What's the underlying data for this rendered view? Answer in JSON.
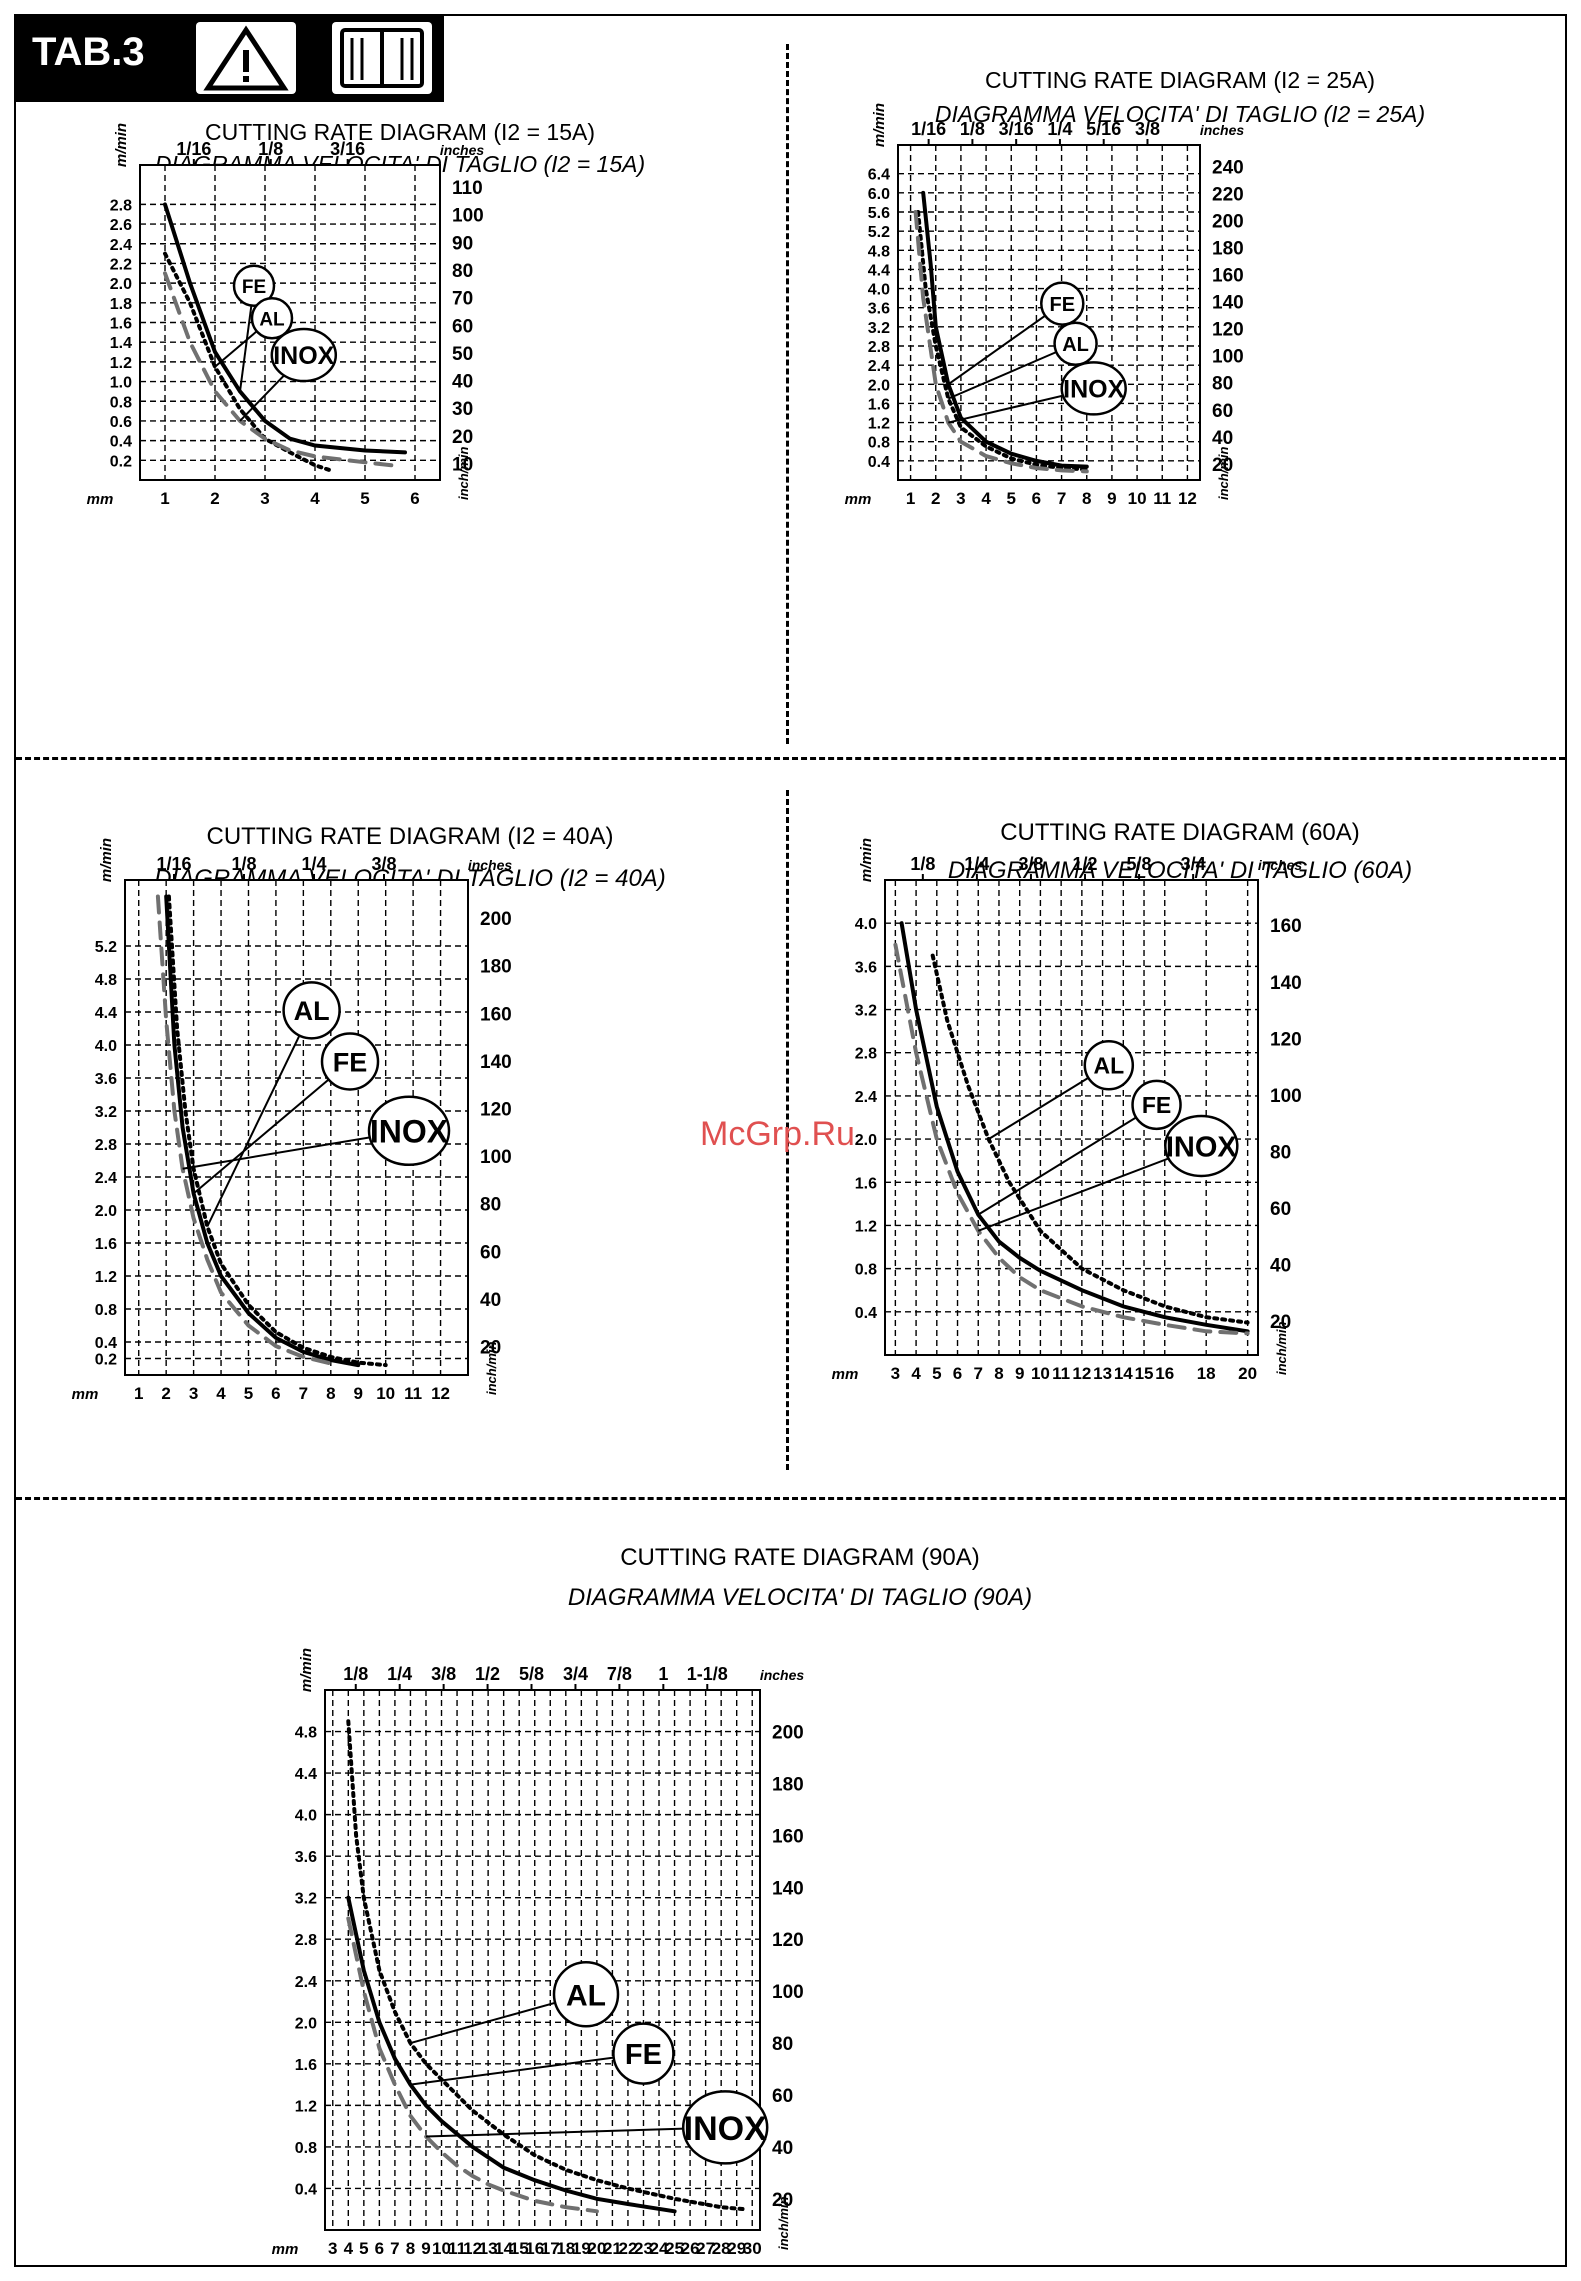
{
  "header": {
    "tab_label": "TAB.3",
    "icons": [
      "warning-triangle-icon",
      "manual-book-icon"
    ]
  },
  "watermark": "McGrp.Ru",
  "colors": {
    "fe": "#000000",
    "al": "#000000",
    "inox": "#707070"
  },
  "chart_data": [
    {
      "type": "line",
      "title": "CUTTING RATE DIAGRAM (I2 = 15A)",
      "subtitle": "DIAGRAMMA VELOCITA' DI TAGLIO (I2 = 15A)",
      "xlabel": "mm",
      "ylabel": "m/min",
      "y2label": "inch/min",
      "x2label": "inches",
      "xlim": [
        0.5,
        6.5
      ],
      "ylim": [
        0,
        3.2
      ],
      "x_ticks": [
        "1",
        "2",
        "3",
        "4",
        "5",
        "6"
      ],
      "y_ticks": [
        "0.2",
        "0.4",
        "0.6",
        "0.8",
        "1.0",
        "1.2",
        "1.4",
        "1.6",
        "1.8",
        "2.0",
        "2.2",
        "2.4",
        "2.6",
        "2.8"
      ],
      "y2_ticks": [
        "10",
        "20",
        "30",
        "40",
        "50",
        "60",
        "70",
        "80",
        "90",
        "100",
        "110"
      ],
      "x2_ticks": [
        "1/16",
        "1/8",
        "3/16"
      ],
      "series": [
        {
          "name": "FE",
          "style": "solid",
          "x": [
            1,
            1.5,
            2,
            2.5,
            3,
            3.5,
            4,
            5,
            5.8
          ],
          "y": [
            2.8,
            2.0,
            1.3,
            0.9,
            0.6,
            0.42,
            0.35,
            0.3,
            0.28
          ]
        },
        {
          "name": "AL",
          "style": "dotted",
          "x": [
            1,
            1.5,
            2,
            2.5,
            3,
            3.5,
            4,
            4.3
          ],
          "y": [
            2.3,
            1.8,
            1.15,
            0.72,
            0.42,
            0.28,
            0.15,
            0.1
          ]
        },
        {
          "name": "INOX",
          "style": "dashed",
          "x": [
            1,
            1.5,
            2,
            2.5,
            3,
            3.5,
            4,
            5,
            5.7
          ],
          "y": [
            2.1,
            1.4,
            0.9,
            0.6,
            0.42,
            0.3,
            0.24,
            0.18,
            0.14
          ]
        }
      ]
    },
    {
      "type": "line",
      "title": "CUTTING RATE DIAGRAM (I2 = 25A)",
      "subtitle": "DIAGRAMMA VELOCITA' DI TAGLIO (I2 = 25A)",
      "xlabel": "mm",
      "ylabel": "m/min",
      "y2label": "inch/min",
      "x2label": "inches",
      "xlim": [
        0.5,
        12.5
      ],
      "ylim": [
        0,
        7
      ],
      "x_ticks": [
        "1",
        "2",
        "3",
        "4",
        "5",
        "6",
        "7",
        "8",
        "9",
        "10",
        "11",
        "12"
      ],
      "y_ticks": [
        "0.4",
        "0.8",
        "1.2",
        "1.6",
        "2.0",
        "2.4",
        "2.8",
        "3.2",
        "3.6",
        "4.0",
        "4.4",
        "4.8",
        "5.2",
        "5.6",
        "6.0",
        "6.4"
      ],
      "y2_ticks": [
        "20",
        "40",
        "60",
        "80",
        "100",
        "120",
        "140",
        "160",
        "180",
        "200",
        "220",
        "240"
      ],
      "x2_ticks": [
        "1/16",
        "1/8",
        "3/16",
        "1/4",
        "5/16",
        "3/8"
      ],
      "series": [
        {
          "name": "FE",
          "style": "solid",
          "x": [
            1.5,
            1.8,
            2,
            2.5,
            3,
            4,
            5,
            6,
            7,
            8
          ],
          "y": [
            6.0,
            4.5,
            3.2,
            2.0,
            1.3,
            0.8,
            0.55,
            0.4,
            0.3,
            0.28
          ]
        },
        {
          "name": "AL",
          "style": "dotted",
          "x": [
            1.3,
            1.6,
            2,
            2.5,
            3,
            4,
            5,
            6,
            7,
            8
          ],
          "y": [
            5.6,
            4.0,
            2.8,
            1.7,
            1.1,
            0.7,
            0.45,
            0.32,
            0.25,
            0.22
          ]
        },
        {
          "name": "INOX",
          "style": "dashed",
          "x": [
            1.2,
            1.5,
            2,
            2.5,
            3,
            4,
            5,
            6,
            7,
            8
          ],
          "y": [
            5.6,
            3.8,
            2.0,
            1.2,
            0.8,
            0.5,
            0.35,
            0.25,
            0.2,
            0.18
          ]
        }
      ]
    },
    {
      "type": "line",
      "title": "CUTTING RATE DIAGRAM (I2 = 40A)",
      "subtitle": "DIAGRAMMA VELOCITA' DI TAGLIO (I2 = 40A)",
      "xlabel": "mm",
      "ylabel": "m/min",
      "y2label": "inch/min",
      "x2label": "inches",
      "xlim": [
        0.5,
        13
      ],
      "ylim": [
        0,
        6
      ],
      "x_ticks": [
        "1",
        "2",
        "3",
        "4",
        "5",
        "6",
        "7",
        "8",
        "9",
        "10",
        "11",
        "12"
      ],
      "y_ticks": [
        "0.2",
        "0.4",
        "0.8",
        "1.2",
        "1.6",
        "2.0",
        "2.4",
        "2.8",
        "3.2",
        "3.6",
        "4.0",
        "4.4",
        "4.8",
        "5.2"
      ],
      "y2_ticks": [
        "20",
        "40",
        "60",
        "80",
        "100",
        "120",
        "140",
        "160",
        "180",
        "200"
      ],
      "x2_ticks": [
        "1/16",
        "1/8",
        "1/4",
        "3/8"
      ],
      "series": [
        {
          "name": "FE",
          "style": "solid",
          "x": [
            2,
            2.3,
            2.6,
            3,
            3.5,
            4,
            5,
            6,
            7,
            8,
            9
          ],
          "y": [
            5.8,
            4.0,
            3.0,
            2.2,
            1.6,
            1.2,
            0.75,
            0.45,
            0.28,
            0.18,
            0.12
          ]
        },
        {
          "name": "AL",
          "style": "dotted",
          "x": [
            2.1,
            2.4,
            2.7,
            3,
            3.5,
            4,
            5,
            6,
            7,
            8,
            9,
            10
          ],
          "y": [
            5.8,
            4.2,
            3.2,
            2.5,
            1.8,
            1.35,
            0.85,
            0.52,
            0.33,
            0.22,
            0.15,
            0.12
          ]
        },
        {
          "name": "INOX",
          "style": "dashed",
          "x": [
            1.7,
            2,
            2.3,
            2.6,
            3,
            3.5,
            4,
            5,
            6,
            7,
            8
          ],
          "y": [
            5.8,
            4.3,
            3.2,
            2.5,
            1.9,
            1.4,
            1.0,
            0.6,
            0.35,
            0.22,
            0.14
          ]
        }
      ]
    },
    {
      "type": "line",
      "title": "CUTTING RATE DIAGRAM (60A)",
      "subtitle": "DIAGRAMMA VELOCITA' DI TAGLIO (60A)",
      "xlabel": "mm",
      "ylabel": "m/min",
      "y2label": "inch/min",
      "x2label": "inches",
      "xlim": [
        2.5,
        20.5
      ],
      "ylim": [
        0,
        4.4
      ],
      "x_ticks": [
        "3",
        "4",
        "5",
        "6",
        "7",
        "8",
        "9",
        "10",
        "11",
        "12",
        "13",
        "14",
        "15",
        "16",
        "18",
        "20"
      ],
      "y_ticks": [
        "0.4",
        "0.8",
        "1.2",
        "1.6",
        "2.0",
        "2.4",
        "2.8",
        "3.2",
        "3.6",
        "4.0"
      ],
      "y2_ticks": [
        "20",
        "40",
        "60",
        "80",
        "100",
        "120",
        "140",
        "160"
      ],
      "x2_ticks": [
        "1/8",
        "1/4",
        "3/8",
        "1/2",
        "5/8",
        "3/4"
      ],
      "series": [
        {
          "name": "FE",
          "style": "solid",
          "x": [
            3.3,
            4,
            5,
            6,
            7,
            8,
            9,
            10,
            12,
            14,
            16,
            18,
            20
          ],
          "y": [
            4.0,
            3.2,
            2.3,
            1.7,
            1.3,
            1.05,
            0.9,
            0.78,
            0.6,
            0.45,
            0.35,
            0.28,
            0.22
          ]
        },
        {
          "name": "AL",
          "style": "dotted",
          "x": [
            4.8,
            5.5,
            6.5,
            7.5,
            8.5,
            10,
            12,
            14,
            16,
            18,
            20
          ],
          "y": [
            3.7,
            3.1,
            2.5,
            2.0,
            1.6,
            1.15,
            0.8,
            0.6,
            0.45,
            0.35,
            0.3
          ]
        },
        {
          "name": "INOX",
          "style": "dashed",
          "x": [
            3,
            4,
            5,
            6,
            7,
            8,
            9,
            10,
            12,
            14,
            16,
            18,
            20
          ],
          "y": [
            3.8,
            2.8,
            2.0,
            1.5,
            1.15,
            0.9,
            0.72,
            0.6,
            0.45,
            0.35,
            0.28,
            0.22,
            0.2
          ]
        }
      ]
    },
    {
      "type": "line",
      "title": "CUTTING RATE DIAGRAM (90A)",
      "subtitle": "DIAGRAMMA VELOCITA' DI TAGLIO (90A)",
      "xlabel": "mm",
      "ylabel": "m/min",
      "y2label": "inch/min",
      "x2label": "inches",
      "xlim": [
        2.5,
        30.5
      ],
      "ylim": [
        0,
        5.2
      ],
      "x_ticks": [
        "3",
        "4",
        "5",
        "6",
        "7",
        "8",
        "9",
        "10",
        "11",
        "12",
        "13",
        "14",
        "15",
        "16",
        "17",
        "18",
        "19",
        "20",
        "21",
        "22",
        "23",
        "24",
        "25",
        "26",
        "27",
        "28",
        "29",
        "30"
      ],
      "y_ticks": [
        "0.4",
        "0.8",
        "1.2",
        "1.6",
        "2.0",
        "2.4",
        "2.8",
        "3.2",
        "3.6",
        "4.0",
        "4.4",
        "4.8"
      ],
      "y2_ticks": [
        "20",
        "40",
        "60",
        "80",
        "100",
        "120",
        "140",
        "160",
        "180",
        "200"
      ],
      "x2_ticks": [
        "1/8",
        "1/4",
        "3/8",
        "1/2",
        "5/8",
        "3/4",
        "7/8",
        "1",
        "1-1/8"
      ],
      "series": [
        {
          "name": "FE",
          "style": "solid",
          "x": [
            4,
            5,
            6,
            7,
            8,
            9,
            10,
            12,
            14,
            16,
            18,
            20,
            22,
            25
          ],
          "y": [
            3.2,
            2.5,
            2.0,
            1.65,
            1.4,
            1.2,
            1.05,
            0.8,
            0.6,
            0.48,
            0.38,
            0.3,
            0.25,
            0.18
          ]
        },
        {
          "name": "AL",
          "style": "dotted",
          "x": [
            4,
            4.5,
            5,
            6,
            7,
            8,
            9,
            10,
            12,
            14,
            16,
            18,
            20,
            22,
            25,
            28,
            29.5
          ],
          "y": [
            4.9,
            3.8,
            3.2,
            2.5,
            2.1,
            1.8,
            1.6,
            1.45,
            1.15,
            0.92,
            0.72,
            0.58,
            0.48,
            0.4,
            0.3,
            0.22,
            0.2
          ]
        },
        {
          "name": "INOX",
          "style": "dashed",
          "x": [
            4,
            5,
            6,
            7,
            8,
            9,
            10,
            11,
            12,
            13,
            14,
            15,
            16,
            17,
            18,
            19,
            20
          ],
          "y": [
            3.0,
            2.3,
            1.75,
            1.4,
            1.1,
            0.9,
            0.75,
            0.62,
            0.52,
            0.44,
            0.38,
            0.33,
            0.28,
            0.25,
            0.22,
            0.2,
            0.18
          ]
        }
      ]
    }
  ]
}
